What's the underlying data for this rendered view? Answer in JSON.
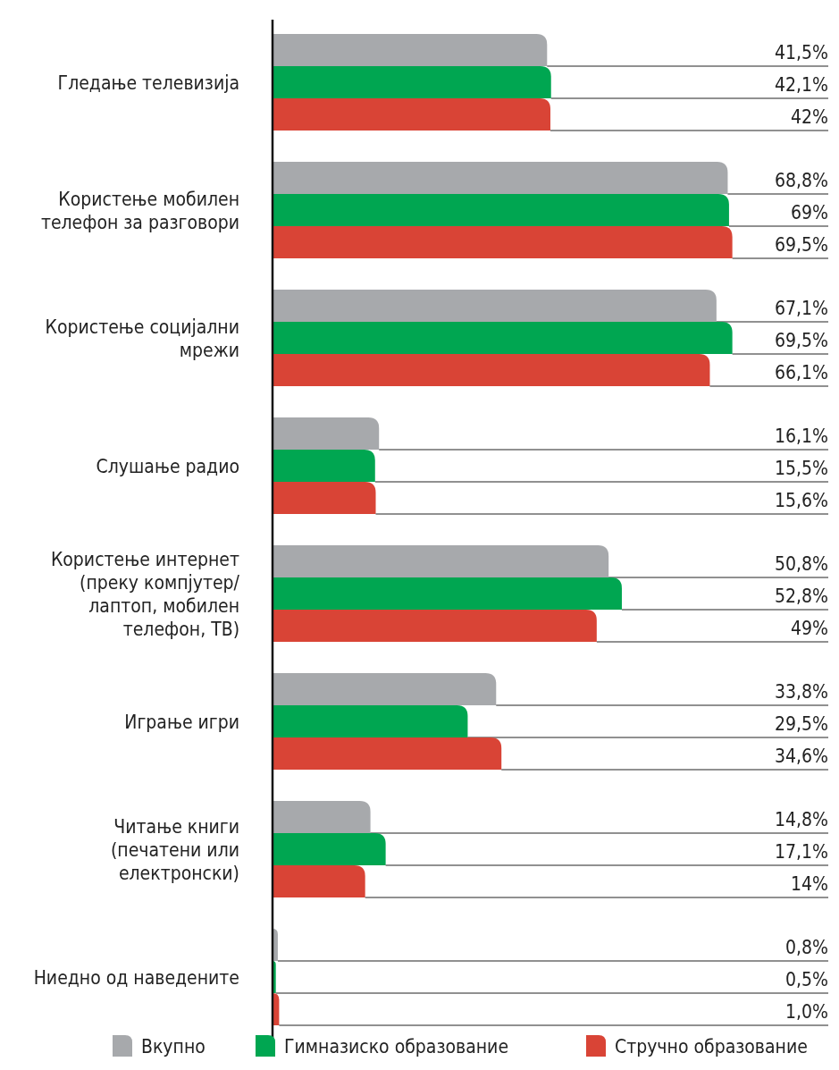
{
  "chart_data": {
    "type": "bar",
    "orientation": "horizontal",
    "xlim": [
      0,
      84
    ],
    "categories": [
      "Гледање телевизија",
      "Користење мобилен телефон за разговори",
      "Користење социјални мрежи",
      "Слушање радио",
      "Користење интернет (преку компјутер/лаптоп, мобилен телефон, ТВ)",
      "Играње игри",
      "Читање книги (печатени или електронски)",
      "Ниедно од наведените"
    ],
    "series": [
      {
        "name": "Вкупно",
        "color": "#a7a9ac",
        "values": [
          41.5,
          68.8,
          67.1,
          16.1,
          50.8,
          33.8,
          14.8,
          0.8
        ],
        "value_labels": [
          "41,5%",
          "68,8%",
          "67,1%",
          "16,1%",
          "50,8%",
          "33,8%",
          "14,8%",
          "0,8%"
        ]
      },
      {
        "name": "Гимназиско образование",
        "color": "#00a651",
        "values": [
          42.1,
          69,
          69.5,
          15.5,
          52.8,
          29.5,
          17.1,
          0.5
        ],
        "value_labels": [
          "42,1%",
          "69%",
          "69,5%",
          "15,5%",
          "52,8%",
          "29,5%",
          "17,1%",
          "0,5%"
        ]
      },
      {
        "name": "Стручно образование",
        "color": "#d94436",
        "values": [
          42,
          69.5,
          66.1,
          15.6,
          49,
          34.6,
          14,
          1.0
        ],
        "value_labels": [
          "42%",
          "69,5%",
          "66,1%",
          "15,6%",
          "49%",
          "34,6%",
          "14%",
          "1,0%"
        ]
      }
    ],
    "legend": "bottom"
  }
}
